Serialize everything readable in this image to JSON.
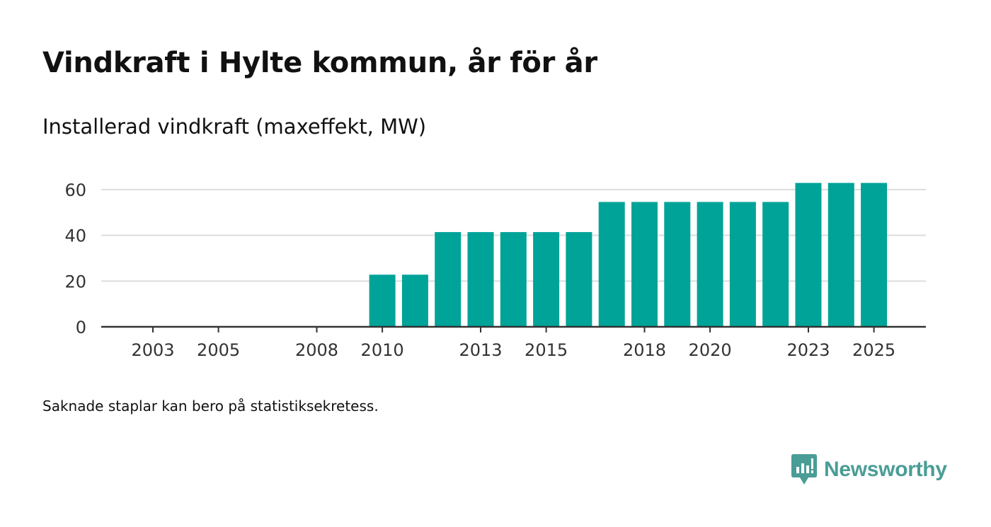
{
  "title": "Vindkraft i Hylte kommun, år för år",
  "subtitle": "Installerad vindkraft (maxeffekt, MW)",
  "note": "Saknade staplar kan bero på statistiksekretess.",
  "brand": {
    "name": "Newsworthy",
    "icon": "newsworthy-logo-icon",
    "color": "#4a9d96"
  },
  "colors": {
    "bar": "#00a398",
    "grid": "#dddddd",
    "axis": "#333333",
    "text": "#111111",
    "tick_text": "#333333"
  },
  "chart_data": {
    "type": "bar",
    "title": "Vindkraft i Hylte kommun, år för år",
    "ylabel": "Installerad vindkraft (maxeffekt, MW)",
    "xlabel": "",
    "categories": [
      "2003",
      "2004",
      "2005",
      "2006",
      "2007",
      "2008",
      "2009",
      "2010",
      "2011",
      "2012",
      "2013",
      "2014",
      "2015",
      "2016",
      "2017",
      "2018",
      "2019",
      "2020",
      "2021",
      "2022",
      "2023",
      "2024",
      "2025"
    ],
    "values": [
      0,
      0,
      0,
      0,
      0,
      0,
      0,
      22.8,
      22.8,
      41.4,
      41.4,
      41.4,
      41.4,
      41.4,
      54.6,
      54.6,
      54.6,
      54.6,
      54.6,
      54.6,
      62.9,
      62.9,
      62.9
    ],
    "x_tick_labels": [
      "2003",
      "2005",
      "2008",
      "2010",
      "2013",
      "2015",
      "2018",
      "2020",
      "2023",
      "2025"
    ],
    "y_ticks": [
      0,
      20,
      40,
      60
    ],
    "ylim": [
      0,
      60
    ],
    "grid": true,
    "legend": "none"
  }
}
